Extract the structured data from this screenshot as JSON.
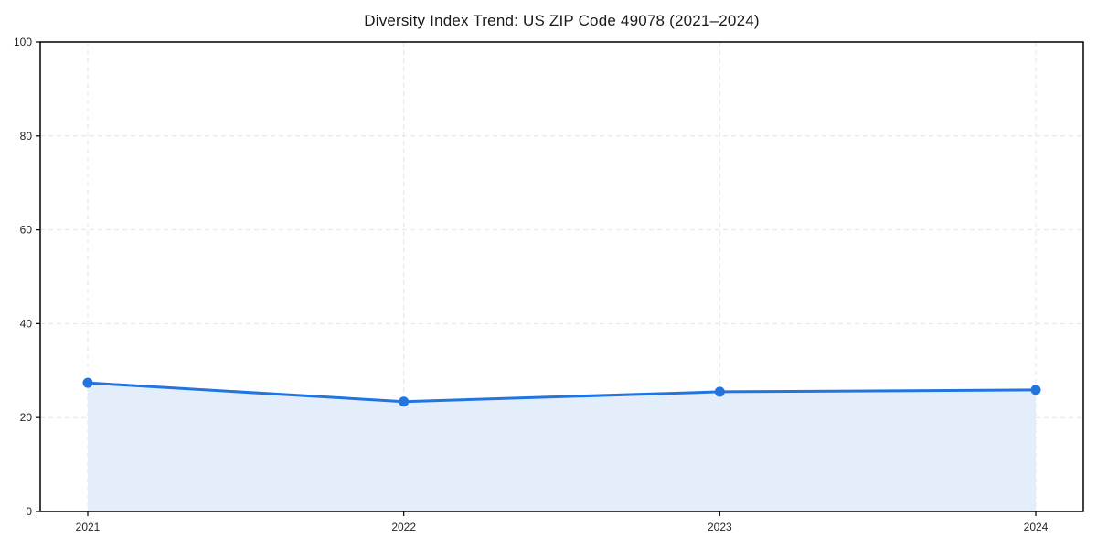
{
  "figure": {
    "background": "#ffffff"
  },
  "chart_data": {
    "type": "area",
    "title": "Diversity Index Trend: US ZIP Code 49078 (2021–2024)",
    "x": [
      "2021",
      "2022",
      "2023",
      "2024"
    ],
    "values": [
      27.4,
      23.4,
      25.5,
      25.9
    ],
    "xlabel": "",
    "ylabel": "",
    "ylim": [
      0,
      100
    ],
    "yticks": [
      0,
      20,
      40,
      60,
      80,
      100
    ],
    "grid": true,
    "grid_style": "dashed",
    "legend": false,
    "line_color": "#2274e0",
    "marker_color": "#2274e0",
    "fill_color": "#e4eefb",
    "grid_color": "#e4e4e4",
    "spine_color": "#000000"
  }
}
